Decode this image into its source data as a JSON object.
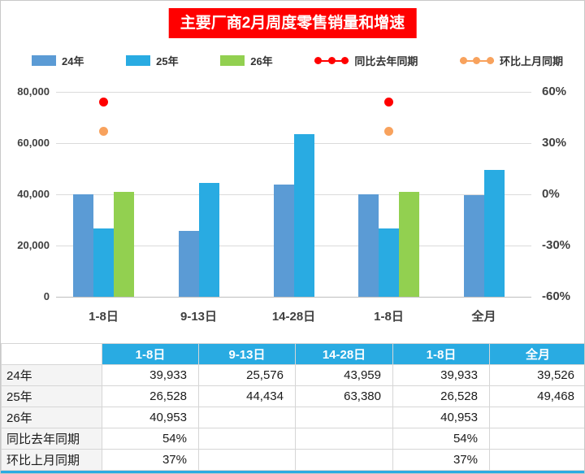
{
  "colors": {
    "title_bg": "#FF0000",
    "table_header_bg": "#29ABE2",
    "bar_blue": "#5B9BD5",
    "bar_cyan": "#29ABE2",
    "bar_green": "#92D050",
    "dot_red": "#FF0000",
    "dot_orange": "#F8A25D"
  },
  "legend": {
    "items": [
      {
        "label": "24年",
        "marker": "rect",
        "color": "#5B9BD5"
      },
      {
        "label": "25年",
        "marker": "rect",
        "color": "#29ABE2"
      },
      {
        "label": "26年",
        "marker": "rect",
        "color": "#92D050"
      },
      {
        "label": "同比去年同期",
        "marker": "line",
        "color": "#FF0000"
      },
      {
        "label": "环比上月同期",
        "marker": "line",
        "color": "#F8A25D"
      }
    ]
  },
  "chart_data": {
    "type": "bar",
    "title": "主要厂商2月周度零售销量和增速",
    "categories": [
      "1-8日",
      "9-13日",
      "14-28日",
      "1-8日",
      "全月"
    ],
    "bar_series": [
      {
        "name": "24年",
        "color": "#5B9BD5",
        "values": [
          39933,
          25576,
          43959,
          39933,
          39526
        ]
      },
      {
        "name": "25年",
        "color": "#29ABE2",
        "values": [
          26528,
          44434,
          63380,
          26528,
          49468
        ]
      },
      {
        "name": "26年",
        "color": "#92D050",
        "values": [
          40953,
          null,
          null,
          40953,
          null
        ]
      }
    ],
    "point_series": [
      {
        "name": "同比去年同期",
        "color": "#FF0000",
        "axis": "right",
        "values": [
          54,
          null,
          null,
          54,
          null
        ]
      },
      {
        "name": "环比上月同期",
        "color": "#F8A25D",
        "axis": "right",
        "values": [
          37,
          null,
          null,
          37,
          null
        ]
      }
    ],
    "y_left": {
      "min": 0,
      "max": 80000,
      "ticks": [
        "0",
        "20,000",
        "40,000",
        "60,000",
        "80,000"
      ]
    },
    "y_right": {
      "min": -60,
      "max": 60,
      "ticks": [
        "-60%",
        "-30%",
        "0%",
        "30%",
        "60%"
      ]
    },
    "grid": true,
    "legend_position": "top"
  },
  "table": {
    "header": [
      "",
      "1-8日",
      "9-13日",
      "14-28日",
      "1-8日",
      "全月"
    ],
    "rows": [
      [
        "24年",
        "39,933",
        "25,576",
        "43,959",
        "39,933",
        "39,526"
      ],
      [
        "25年",
        "26,528",
        "44,434",
        "63,380",
        "26,528",
        "49,468"
      ],
      [
        "26年",
        "40,953",
        "",
        "",
        "40,953",
        ""
      ],
      [
        "同比去年同期",
        "54%",
        "",
        "",
        "54%",
        ""
      ],
      [
        "环比上月同期",
        "37%",
        "",
        "",
        "37%",
        ""
      ]
    ]
  }
}
